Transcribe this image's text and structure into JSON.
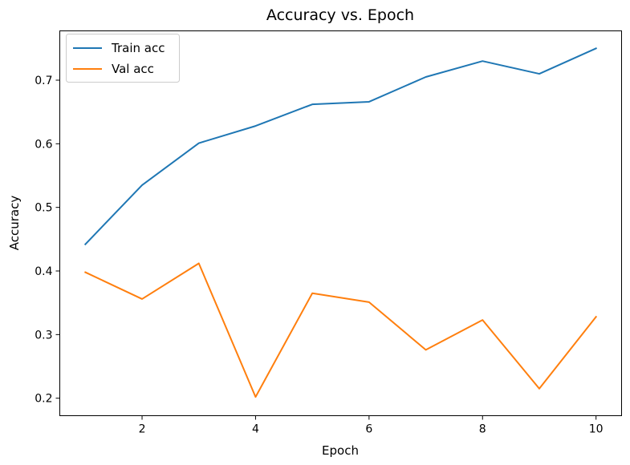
{
  "chart_data": {
    "type": "line",
    "title": "Accuracy vs. Epoch",
    "xlabel": "Epoch",
    "ylabel": "Accuracy",
    "x": [
      1,
      2,
      3,
      4,
      5,
      6,
      7,
      8,
      9,
      10
    ],
    "xticks": [
      2,
      4,
      6,
      8,
      10
    ],
    "yticks": [
      0.2,
      0.3,
      0.4,
      0.5,
      0.6,
      0.7
    ],
    "xlim": [
      0.55,
      10.45
    ],
    "ylim": [
      0.1725,
      0.7775
    ],
    "grid": false,
    "legend_position": "upper left",
    "series": [
      {
        "name": "Train acc",
        "color": "#1f77b4",
        "values": [
          0.442,
          0.535,
          0.601,
          0.628,
          0.662,
          0.666,
          0.705,
          0.73,
          0.71,
          0.75
        ]
      },
      {
        "name": "Val acc",
        "color": "#ff7f0e",
        "values": [
          0.398,
          0.356,
          0.412,
          0.202,
          0.365,
          0.351,
          0.276,
          0.323,
          0.215,
          0.328
        ]
      }
    ]
  }
}
